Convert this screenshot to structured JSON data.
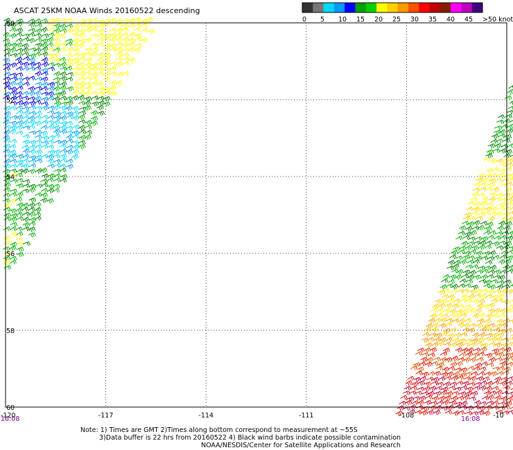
{
  "title": "ASCAT 25KM NOAA Winds 20160522 descending",
  "color_scale": {
    "labels": [
      "0",
      "5",
      "10",
      "15",
      "20",
      "25",
      "30",
      "35",
      "40",
      "45",
      ">50 knots"
    ],
    "colors": [
      "#333333",
      "#777777",
      "#00d8ff",
      "#0099ff",
      "#0000ff",
      "#00a000",
      "#00d000",
      "#ffff00",
      "#ffd000",
      "#ff9900",
      "#ff5000",
      "#ff0000",
      "#c00000",
      "#802000",
      "#ff00ff",
      "#c000c0",
      "#400080"
    ]
  },
  "axes": {
    "lon_labels": [
      "-120",
      "-117",
      "-114",
      "-111",
      "-108",
      "-10"
    ],
    "lat_labels": [
      "50",
      "52",
      "54",
      "56",
      "58",
      "60"
    ]
  },
  "times": {
    "left": "16:08",
    "right": "16:08"
  },
  "notes": {
    "line1": "Note: 1) Times are GMT 2)Times along bottom correspond to measurement at ~55S",
    "line2": "3)Data buffer is 22 hrs from 20160522 4) Black wind barbs indicate possible contamination",
    "line3": "NOAA/NESDIS/Center for Satellite Applications and Research"
  }
}
